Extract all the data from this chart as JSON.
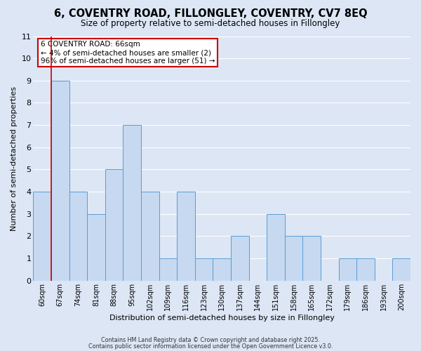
{
  "title1": "6, COVENTRY ROAD, FILLONGLEY, COVENTRY, CV7 8EQ",
  "title2": "Size of property relative to semi-detached houses in Fillongley",
  "xlabel": "Distribution of semi-detached houses by size in Fillongley",
  "ylabel": "Number of semi-detached properties",
  "categories": [
    "60sqm",
    "67sqm",
    "74sqm",
    "81sqm",
    "88sqm",
    "95sqm",
    "102sqm",
    "109sqm",
    "116sqm",
    "123sqm",
    "130sqm",
    "137sqm",
    "144sqm",
    "151sqm",
    "158sqm",
    "165sqm",
    "172sqm",
    "179sqm",
    "186sqm",
    "193sqm",
    "200sqm"
  ],
  "values": [
    4,
    9,
    4,
    3,
    5,
    7,
    4,
    1,
    4,
    1,
    1,
    2,
    0,
    3,
    2,
    2,
    0,
    1,
    1,
    0,
    1
  ],
  "bar_color": "#c6d9f0",
  "bar_edge_color": "#5b9bd5",
  "highlight_index": 1,
  "highlight_color": "#cc0000",
  "ylim": [
    0,
    11
  ],
  "yticks": [
    0,
    1,
    2,
    3,
    4,
    5,
    6,
    7,
    8,
    9,
    10,
    11
  ],
  "annotation_title": "6 COVENTRY ROAD: 66sqm",
  "annotation_line1": "← 4% of semi-detached houses are smaller (2)",
  "annotation_line2": "96% of semi-detached houses are larger (51) →",
  "footer1": "Contains HM Land Registry data © Crown copyright and database right 2025.",
  "footer2": "Contains public sector information licensed under the Open Government Licence v3.0.",
  "background_color": "#dce6f5",
  "grid_color": "#ffffff",
  "annotation_box_color": "#ffffff",
  "annotation_box_edge": "#cc0000"
}
